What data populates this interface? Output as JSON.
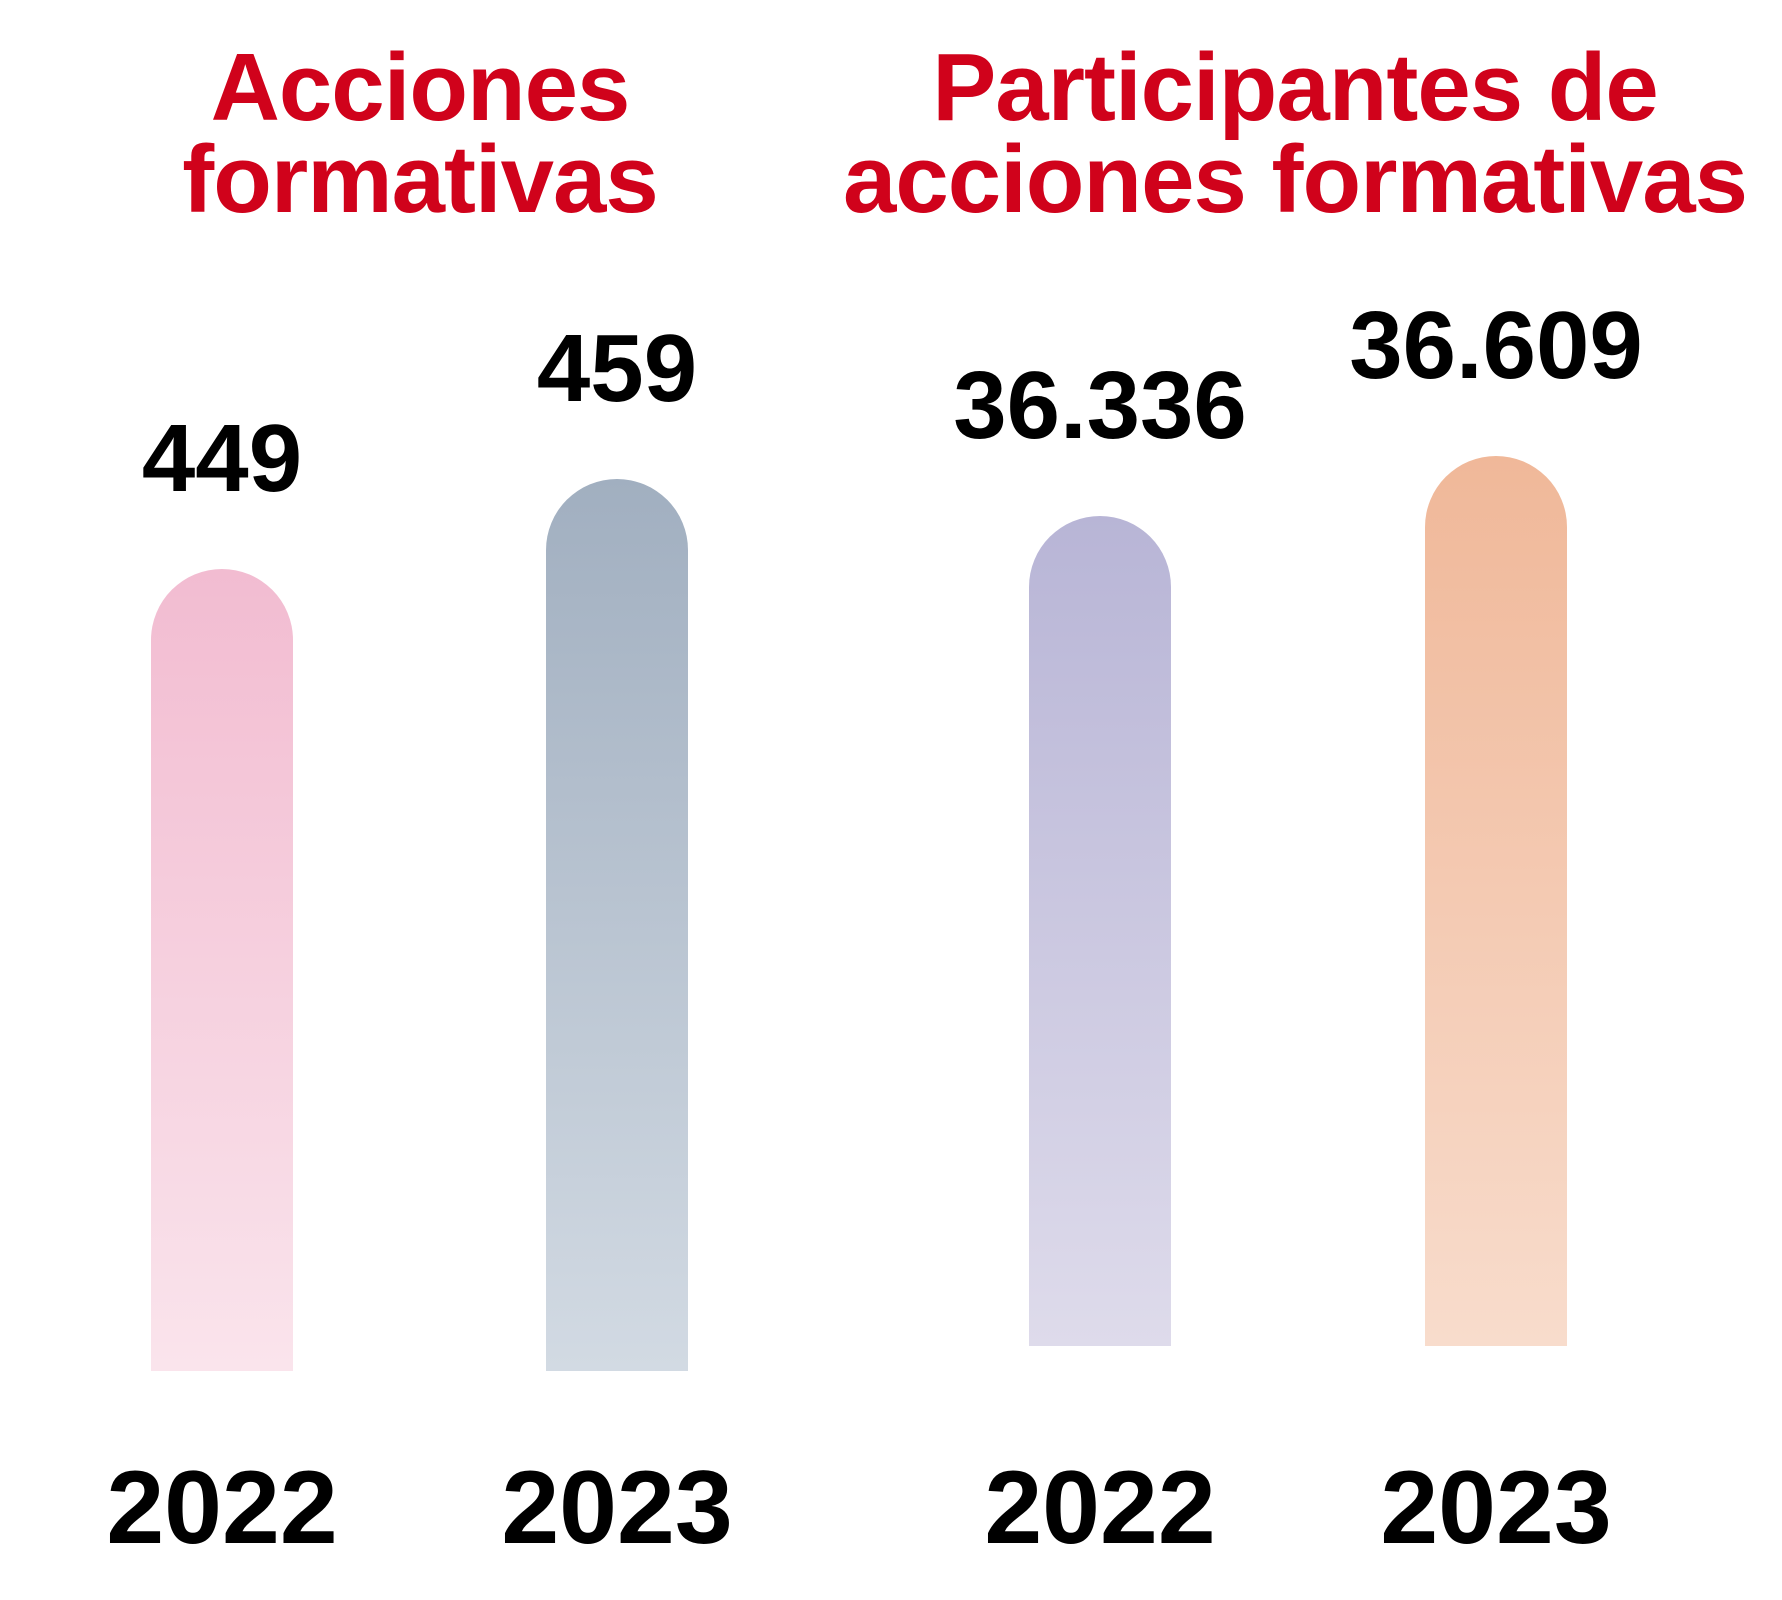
{
  "chart_data": [
    {
      "type": "bar",
      "title": [
        "Acciones",
        "formativas"
      ],
      "categories": [
        "2022",
        "2023"
      ],
      "values": [
        449,
        459
      ],
      "value_labels": [
        "449",
        "459"
      ],
      "colors": [
        {
          "top": "#f2bcd1",
          "bottom": "#fae4ec"
        },
        {
          "top": "#a1afc0",
          "bottom": "#d2dae3"
        }
      ]
    },
    {
      "type": "bar",
      "title": [
        "Participantes de",
        "acciones formativas"
      ],
      "categories": [
        "2022",
        "2023"
      ],
      "values": [
        36336,
        36609
      ],
      "value_labels": [
        "36.336",
        "36.609"
      ],
      "colors": [
        {
          "top": "#b8b5d6",
          "bottom": "#dedbeb"
        },
        {
          "top": "#f0b899",
          "bottom": "#f8dccc"
        }
      ]
    }
  ],
  "title_color": "#d0021b"
}
